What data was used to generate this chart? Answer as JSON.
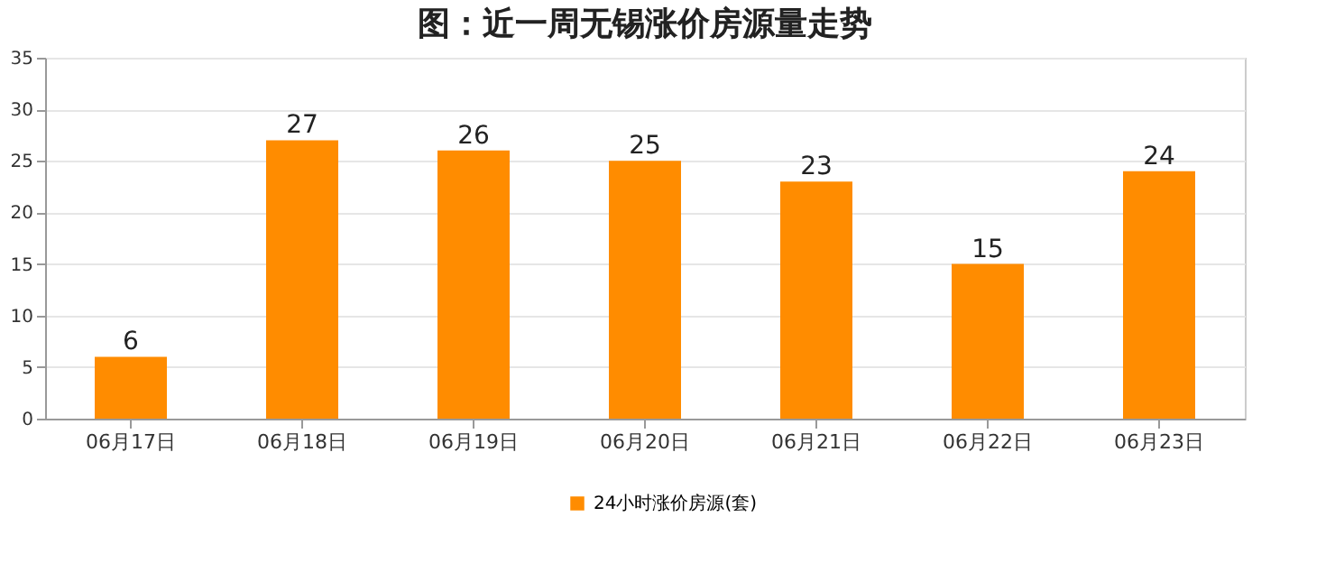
{
  "chart_data": {
    "type": "bar",
    "title": "图：近一周无锡涨价房源量走势",
    "categories": [
      "06月17日",
      "06月18日",
      "06月19日",
      "06月20日",
      "06月21日",
      "06月22日",
      "06月23日"
    ],
    "series": [
      {
        "name": "24小时涨价房源(套)",
        "color": "#ff8c00",
        "values": [
          6,
          27,
          26,
          25,
          23,
          15,
          24
        ]
      }
    ],
    "ylim": [
      0,
      35
    ],
    "yticks": [
      0,
      5,
      10,
      15,
      20,
      25,
      30,
      35
    ],
    "grid": "y",
    "legend": "bottom",
    "data_labels": true
  }
}
